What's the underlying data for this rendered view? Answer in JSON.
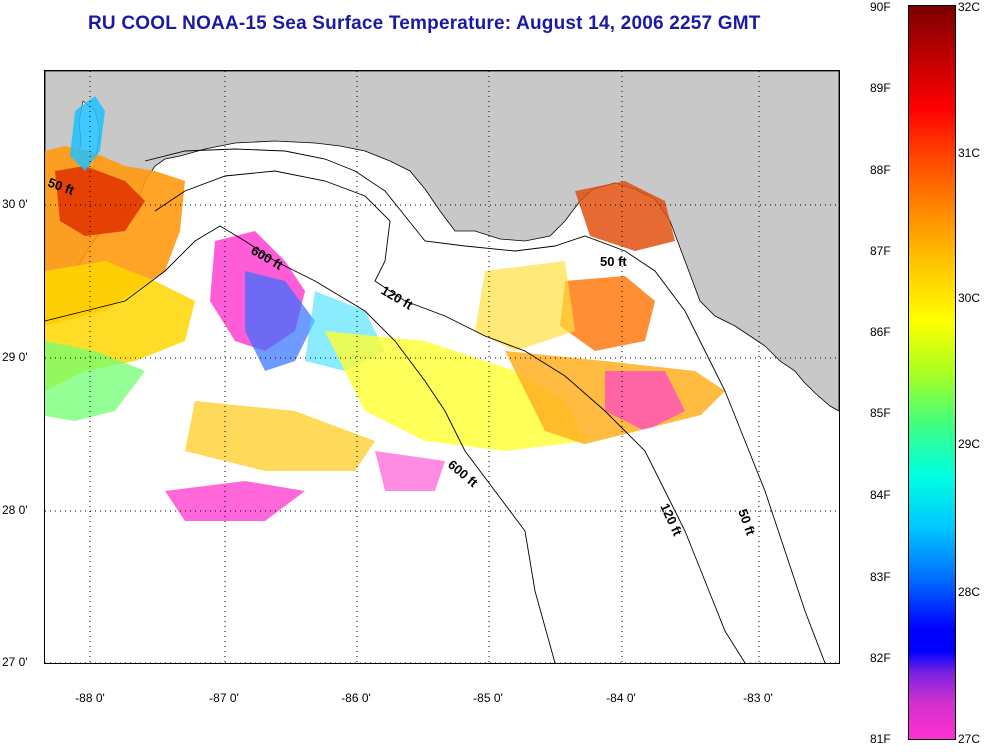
{
  "title": "RU COOL  NOAA-15  Sea Surface Temperature:  August 14, 2006 2257 GMT",
  "map": {
    "latitude_labels": [
      "30 0'",
      "29 0'",
      "28 0'",
      "27 0'"
    ],
    "longitude_labels": [
      "-88 0'",
      "-87 0'",
      "-86 0'",
      "-85 0'",
      "-84 0'",
      "-83 0'"
    ],
    "contour_labels": [
      "50 ft",
      "600 ft",
      "120 ft",
      "50 ft",
      "600 ft",
      "120 ft",
      "50 ft"
    ],
    "land_color": "#c8c8c8",
    "coast_color": "#000000"
  },
  "colorbar": {
    "fahrenheit_labels": [
      "90F",
      "89F",
      "88F",
      "87F",
      "86F",
      "85F",
      "84F",
      "83F",
      "82F",
      "81F"
    ],
    "celsius_labels": [
      "32C",
      "31C",
      "30C",
      "29C",
      "28C",
      "27C"
    ],
    "colors": [
      "#7a0000",
      "#ff0000",
      "#ff8a00",
      "#ffff00",
      "#40ff80",
      "#00ffe0",
      "#0070ff",
      "#0000ff",
      "#ff30d0"
    ]
  }
}
